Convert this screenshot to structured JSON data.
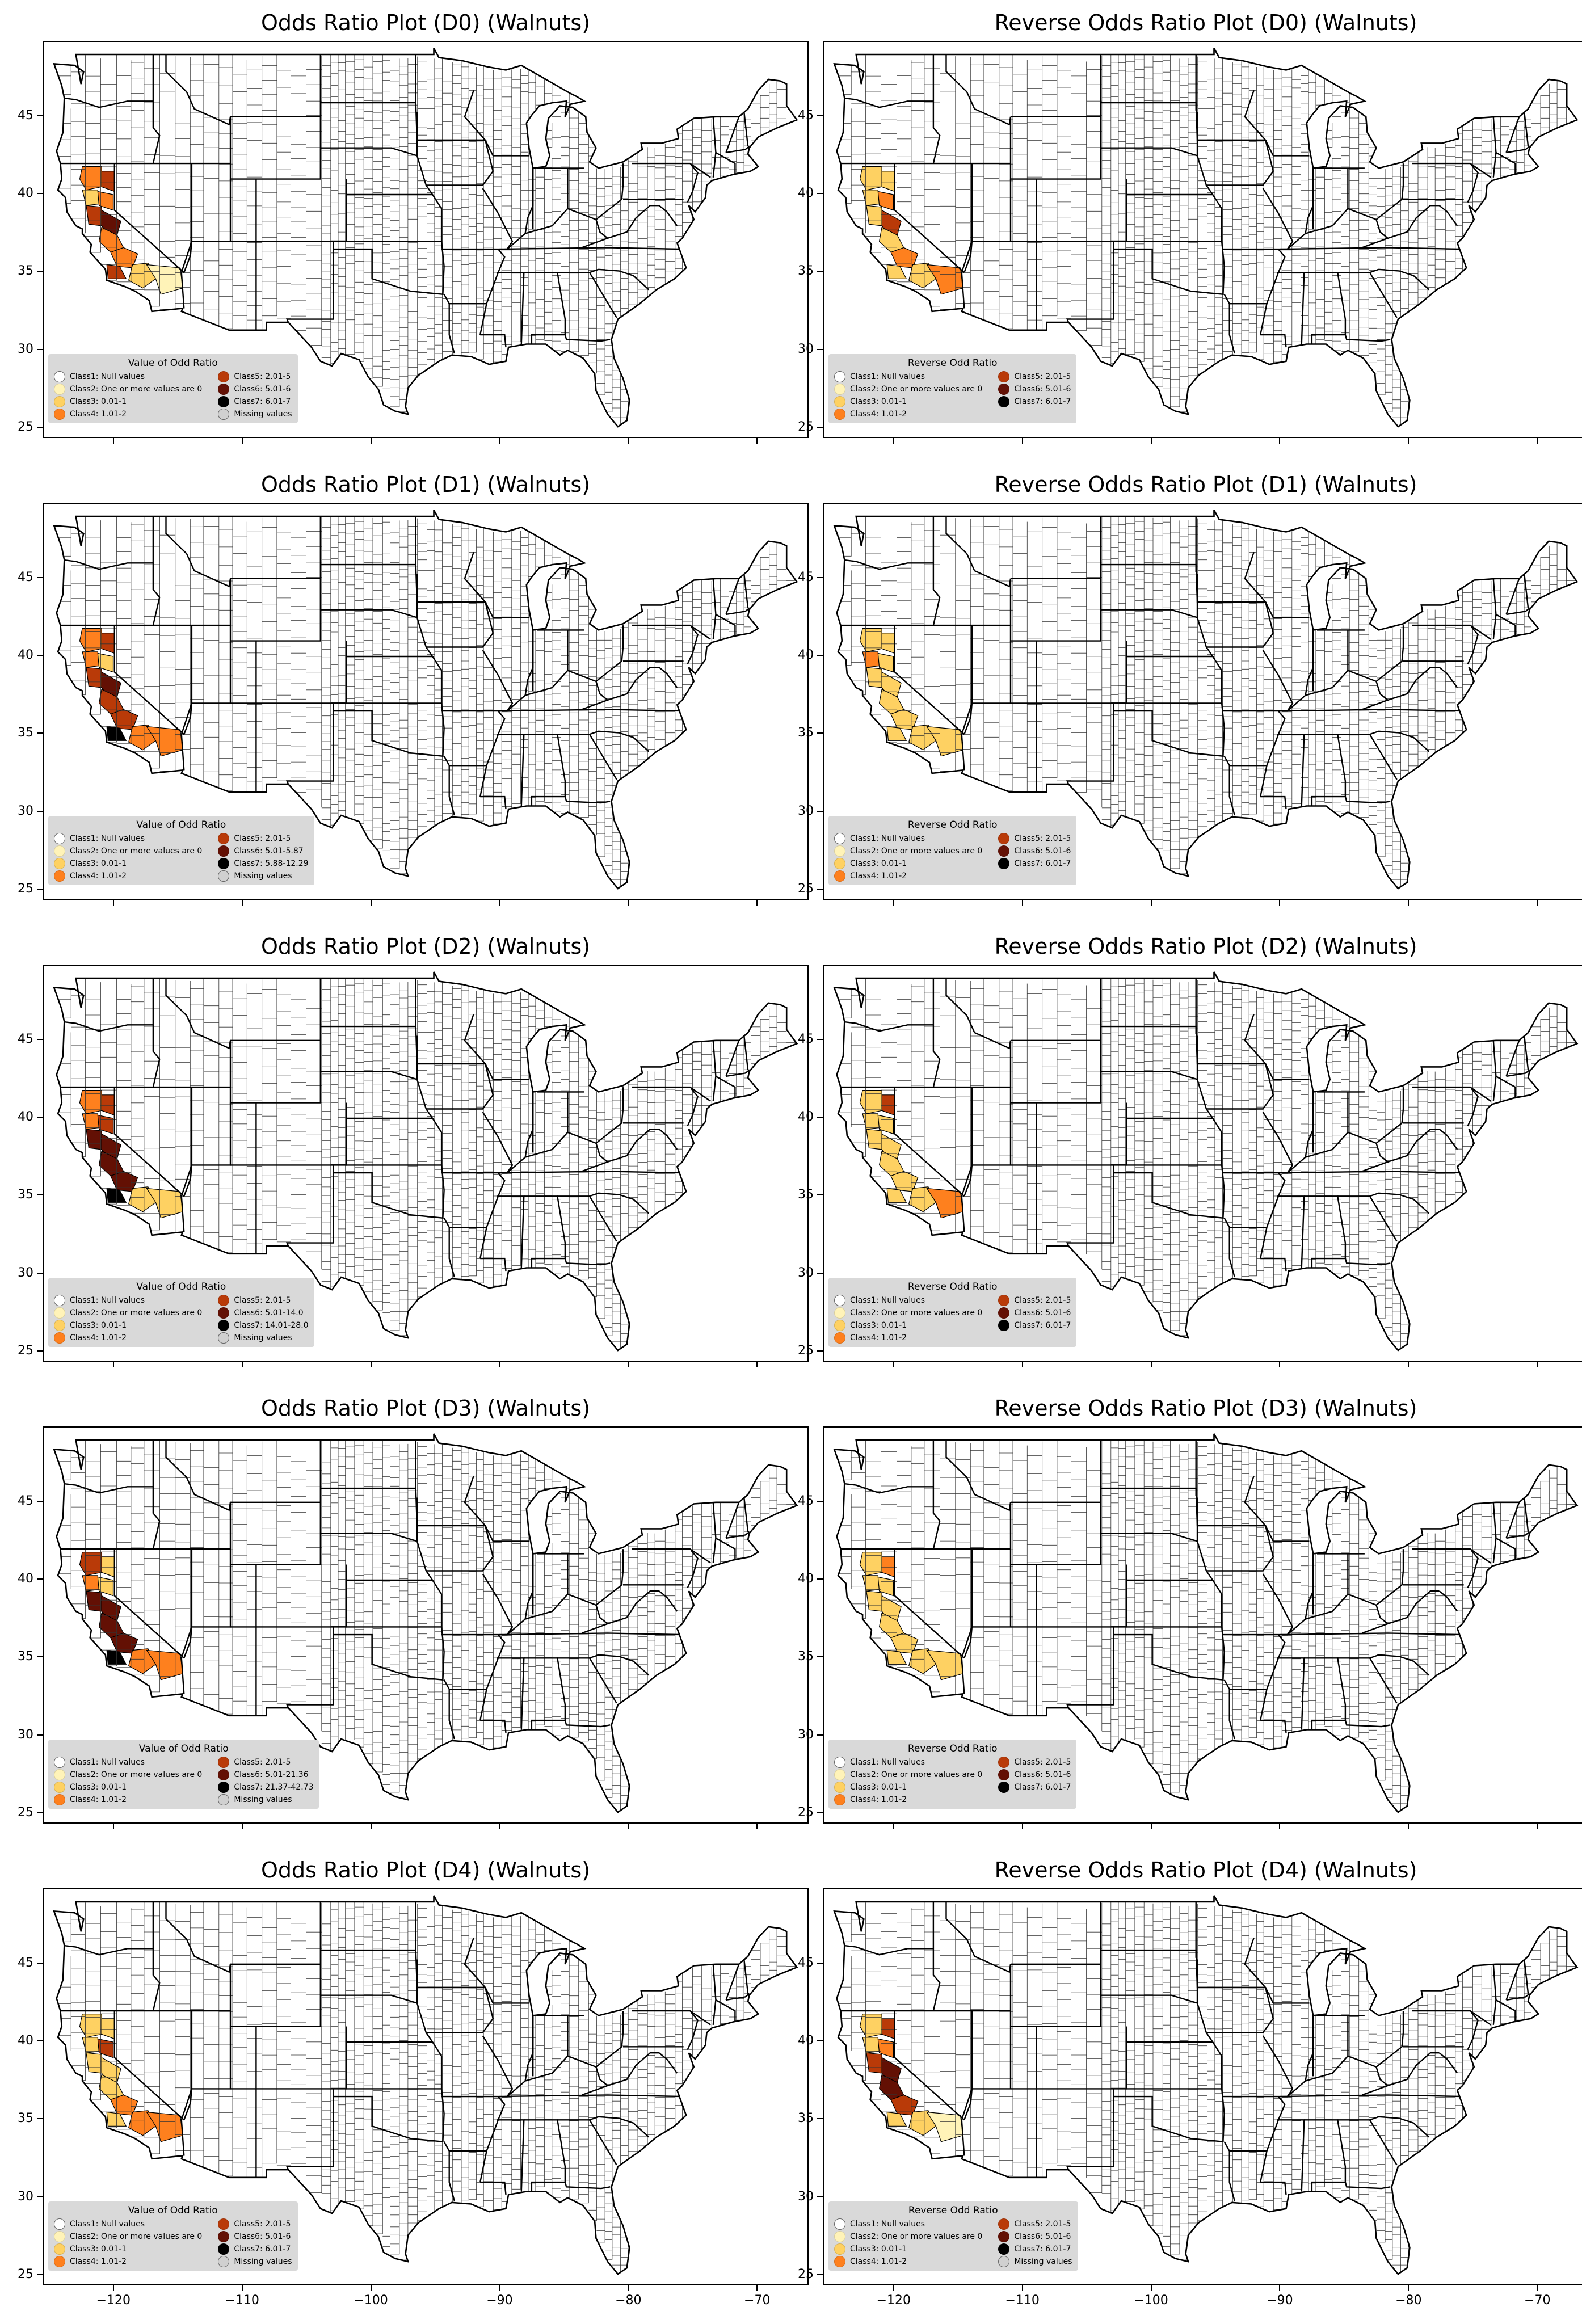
{
  "figure": {
    "x_ticks": [
      "−120",
      "−110",
      "−100",
      "−90",
      "−80",
      "−70"
    ],
    "x_tick_values": [
      -120,
      -110,
      -100,
      -90,
      -80,
      -70
    ],
    "y_ticks": [
      "45",
      "40",
      "35",
      "30",
      "25"
    ],
    "y_tick_values": [
      45,
      40,
      35,
      30,
      25
    ]
  },
  "colors": {
    "class1": "#ffffff",
    "class2": "#fff3b8",
    "class3": "#fed162",
    "class4": "#fe801e",
    "class5": "#b93a08",
    "class6": "#631004",
    "class7": "#000000",
    "missing": "#d0d0d0",
    "state_border": "#000000",
    "county_border": "#333333",
    "legend_bg": "#d9d9d9"
  },
  "panels": [
    {
      "title": "Odds Ratio Plot (D0) (Walnuts)",
      "legend_title": "Value of Odd Ratio",
      "legend_items": [
        "Class1: Null values",
        "Class5: 2.01-5",
        "Class2: One or more values are 0",
        "Class6: 5.01-6",
        "Class3: 0.01-1",
        "Class7: 6.01-7",
        "Class4: 1.01-2",
        "Missing values"
      ],
      "legend_colors": [
        "class1",
        "class5",
        "class2",
        "class6",
        "class3",
        "class7",
        "class4",
        "missing"
      ],
      "california_classes": [
        "class4",
        "class5",
        "class3",
        "class4",
        "class5",
        "class6",
        "class4",
        "class4",
        "class5",
        "class3",
        "class2"
      ]
    },
    {
      "title": "Reverse Odds Ratio Plot (D0) (Walnuts)",
      "legend_title": "Reverse Odd Ratio",
      "legend_items": [
        "Class1: Null values",
        "Class5: 2.01-5",
        "Class2: One or more values are 0",
        "Class6: 5.01-6",
        "Class3: 0.01-1",
        "Class7: 6.01-7",
        "Class4: 1.01-2"
      ],
      "legend_colors": [
        "class1",
        "class5",
        "class2",
        "class6",
        "class3",
        "class7",
        "class4"
      ],
      "california_classes": [
        "class3",
        "class3",
        "class3",
        "class4",
        "class3",
        "class5",
        "class3",
        "class4",
        "class3",
        "class3",
        "class4"
      ]
    },
    {
      "title": "Odds Ratio Plot (D1) (Walnuts)",
      "legend_title": "Value of Odd Ratio",
      "legend_items": [
        "Class1: Null values",
        "Class5: 2.01-5",
        "Class2: One or more values are 0",
        "Class6: 5.01-5.87",
        "Class3: 0.01-1",
        "Class7: 5.88-12.29",
        "Class4: 1.01-2",
        "Missing values"
      ],
      "legend_colors": [
        "class1",
        "class5",
        "class2",
        "class6",
        "class3",
        "class7",
        "class4",
        "missing"
      ],
      "california_classes": [
        "class4",
        "class5",
        "class4",
        "class3",
        "class5",
        "class6",
        "class5",
        "class5",
        "class7",
        "class4",
        "class4"
      ]
    },
    {
      "title": "Reverse Odds Ratio Plot (D1) (Walnuts)",
      "legend_title": "Reverse Odd Ratio",
      "legend_items": [
        "Class1: Null values",
        "Class5: 2.01-5",
        "Class2: One or more values are 0",
        "Class6: 5.01-6",
        "Class3: 0.01-1",
        "Class7: 6.01-7",
        "Class4: 1.01-2"
      ],
      "legend_colors": [
        "class1",
        "class5",
        "class2",
        "class6",
        "class3",
        "class7",
        "class4"
      ],
      "california_classes": [
        "class3",
        "class3",
        "class4",
        "class3",
        "class3",
        "class3",
        "class3",
        "class3",
        "class3",
        "class3",
        "class3"
      ]
    },
    {
      "title": "Odds Ratio Plot (D2) (Walnuts)",
      "legend_title": "Value of Odd Ratio",
      "legend_items": [
        "Class1: Null values",
        "Class5: 2.01-5",
        "Class2: One or more values are 0",
        "Class6: 5.01-14.0",
        "Class3: 0.01-1",
        "Class7: 14.01-28.0",
        "Class4: 1.01-2",
        "Missing values"
      ],
      "legend_colors": [
        "class1",
        "class5",
        "class2",
        "class6",
        "class3",
        "class7",
        "class4",
        "missing"
      ],
      "california_classes": [
        "class4",
        "class5",
        "class4",
        "class5",
        "class6",
        "class6",
        "class6",
        "class6",
        "class7",
        "class3",
        "class3"
      ]
    },
    {
      "title": "Reverse Odds Ratio Plot (D2) (Walnuts)",
      "legend_title": "Reverse Odd Ratio",
      "legend_items": [
        "Class1: Null values",
        "Class5: 2.01-5",
        "Class2: One or more values are 0",
        "Class6: 5.01-6",
        "Class3: 0.01-1",
        "Class7: 6.01-7",
        "Class4: 1.01-2"
      ],
      "legend_colors": [
        "class1",
        "class5",
        "class2",
        "class6",
        "class3",
        "class7",
        "class4"
      ],
      "california_classes": [
        "class3",
        "class5",
        "class3",
        "class3",
        "class3",
        "class3",
        "class3",
        "class3",
        "class3",
        "class3",
        "class4"
      ]
    },
    {
      "title": "Odds Ratio Plot (D3) (Walnuts)",
      "legend_title": "Value of Odd Ratio",
      "legend_items": [
        "Class1: Null values",
        "Class5: 2.01-5",
        "Class2: One or more values are 0",
        "Class6: 5.01-21.36",
        "Class3: 0.01-1",
        "Class7: 21.37-42.73",
        "Class4: 1.01-2",
        "Missing values"
      ],
      "legend_colors": [
        "class1",
        "class5",
        "class2",
        "class6",
        "class3",
        "class7",
        "class4",
        "missing"
      ],
      "california_classes": [
        "class5",
        "class3",
        "class4",
        "class3",
        "class6",
        "class6",
        "class6",
        "class6",
        "class7",
        "class4",
        "class4"
      ]
    },
    {
      "title": "Reverse Odds Ratio Plot (D3) (Walnuts)",
      "legend_title": "Reverse Odd Ratio",
      "legend_items": [
        "Class1: Null values",
        "Class5: 2.01-5",
        "Class2: One or more values are 0",
        "Class6: 5.01-6",
        "Class3: 0.01-1",
        "Class7: 6.01-7",
        "Class4: 1.01-2"
      ],
      "legend_colors": [
        "class1",
        "class5",
        "class2",
        "class6",
        "class3",
        "class7",
        "class4"
      ],
      "california_classes": [
        "class3",
        "class4",
        "class3",
        "class3",
        "class3",
        "class3",
        "class3",
        "class3",
        "class3",
        "class3",
        "class3"
      ]
    },
    {
      "title": "Odds Ratio Plot (D4) (Walnuts)",
      "legend_title": "Value of Odd Ratio",
      "legend_items": [
        "Class1: Null values",
        "Class5: 2.01-5",
        "Class2: One or more values are 0",
        "Class6: 5.01-6",
        "Class3: 0.01-1",
        "Class7: 6.01-7",
        "Class4: 1.01-2",
        "Missing values"
      ],
      "legend_colors": [
        "class1",
        "class5",
        "class2",
        "class6",
        "class3",
        "class7",
        "class4",
        "missing"
      ],
      "california_classes": [
        "class3",
        "class3",
        "class3",
        "class5",
        "class3",
        "class3",
        "class3",
        "class4",
        "class3",
        "class4",
        "class4"
      ]
    },
    {
      "title": "Reverse Odds Ratio Plot (D4) (Walnuts)",
      "legend_title": "Reverse Odd Ratio",
      "legend_items": [
        "Class1: Null values",
        "Class5: 2.01-5",
        "Class2: One or more values are 0",
        "Class6: 5.01-6",
        "Class3: 0.01-1",
        "Class7: 6.01-7",
        "Class4: 1.01-2",
        "Missing values"
      ],
      "legend_colors": [
        "class1",
        "class5",
        "class2",
        "class6",
        "class3",
        "class7",
        "class4",
        "missing"
      ],
      "california_classes": [
        "class3",
        "class5",
        "class3",
        "class4",
        "class5",
        "class6",
        "class6",
        "class5",
        "class3",
        "class3",
        "class2"
      ]
    }
  ]
}
